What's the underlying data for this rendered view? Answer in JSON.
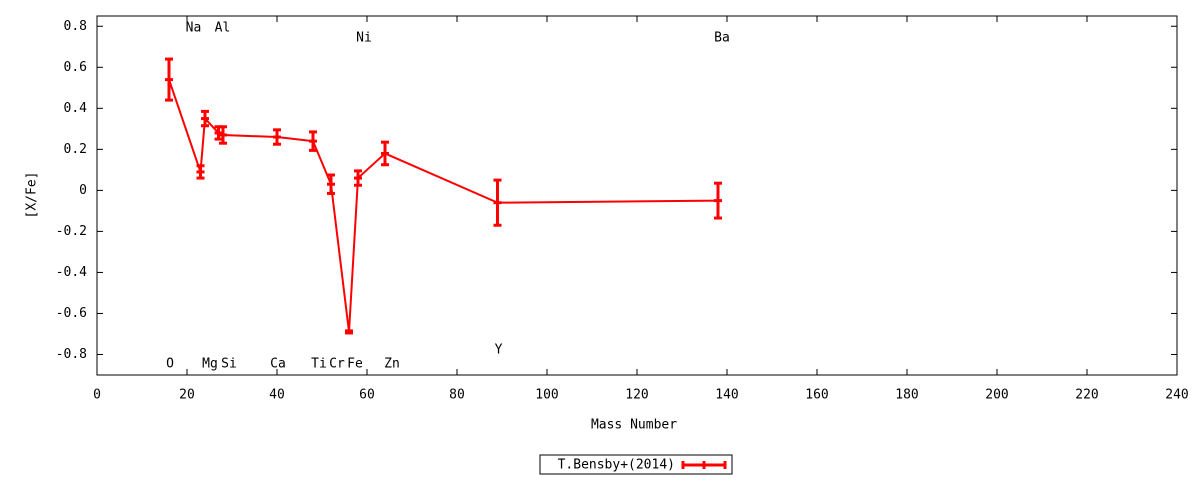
{
  "chart_data": {
    "type": "errorline",
    "x_label": "Mass Number",
    "y_label": "[X/Fe]",
    "xlim": [
      0,
      240
    ],
    "xticks": [
      0,
      20,
      40,
      60,
      80,
      100,
      120,
      140,
      160,
      180,
      200,
      220,
      240
    ],
    "ylim": [
      -0.9,
      0.85
    ],
    "yticks": [
      -0.8,
      -0.6,
      -0.4,
      -0.2,
      0,
      0.2,
      0.4,
      0.6,
      0.8
    ],
    "legend": "bottom",
    "series": [
      {
        "name": "T.Bensby+(2014)",
        "color": "#ff0000",
        "labels": [
          "O",
          "Na",
          "Mg",
          "Al",
          "Si",
          "Ca",
          "Ti",
          "Cr",
          "Fe",
          "Ni",
          "Zn",
          "Y",
          "Ba"
        ],
        "x": [
          16,
          23,
          24,
          27,
          28,
          40,
          48,
          52,
          56,
          58,
          64,
          89,
          138
        ],
        "values": [
          0.54,
          0.09,
          0.35,
          0.28,
          0.27,
          0.26,
          0.24,
          0.03,
          -0.69,
          0.06,
          0.18,
          -0.06,
          -0.05
        ],
        "errors": [
          0.1,
          0.03,
          0.035,
          0.03,
          0.04,
          0.035,
          0.045,
          0.045,
          0.005,
          0.035,
          0.055,
          0.11,
          0.085
        ]
      }
    ]
  }
}
